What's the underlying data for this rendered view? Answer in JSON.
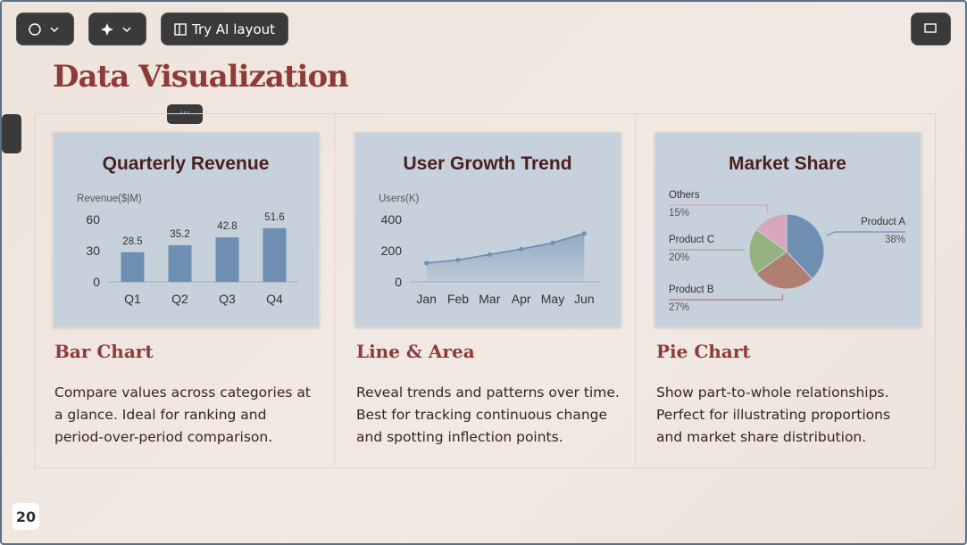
{
  "toolbar": {
    "ai_layout": "Try AI layout"
  },
  "slide": {
    "title": "Data Visualization",
    "page_number": 20,
    "cards": [
      {
        "heading": "Bar Chart",
        "description": "Compare values across categories at a glance. Ideal for ranking and period-over-period comparison.",
        "chart": {
          "type": "bar",
          "title": "Quarterly Revenue",
          "y_label": "Revenue($|M)",
          "categories": [
            "Q1",
            "Q2",
            "Q3",
            "Q4"
          ],
          "values": [
            28.5,
            35.2,
            42.8,
            51.6
          ],
          "color": "#6f8fb2",
          "ylim": [
            0,
            60
          ],
          "yticks": [
            0,
            30,
            60
          ]
        }
      },
      {
        "heading": "Line & Area",
        "description": "Reveal trends and patterns over time. Best for tracking continuous change and spotting inflection points.",
        "chart": {
          "type": "line",
          "title": "User Growth Trend",
          "y_label": "Users(K)",
          "categories": [
            "Jan",
            "Feb",
            "Mar",
            "Apr",
            "May",
            "Jun"
          ],
          "values": [
            120,
            140,
            175,
            210,
            250,
            310
          ],
          "color": "#6f8fb2",
          "ylim": [
            0,
            400
          ],
          "yticks": [
            0,
            200,
            400
          ]
        }
      },
      {
        "heading": "Pie Chart",
        "description": "Show part-to-whole relationships. Perfect for illustrating proportions and market share distribution.",
        "chart": {
          "type": "pie",
          "title": "Market Share",
          "categories": [
            "Product A",
            "Product B",
            "Product C",
            "Others"
          ],
          "values": [
            38,
            27,
            20,
            15
          ],
          "value_labels": [
            "38%",
            "27%",
            "20%",
            "15%"
          ],
          "colors": [
            "#6f8fb2",
            "#b07e72",
            "#94b27d",
            "#d6a6ba"
          ]
        }
      }
    ]
  }
}
